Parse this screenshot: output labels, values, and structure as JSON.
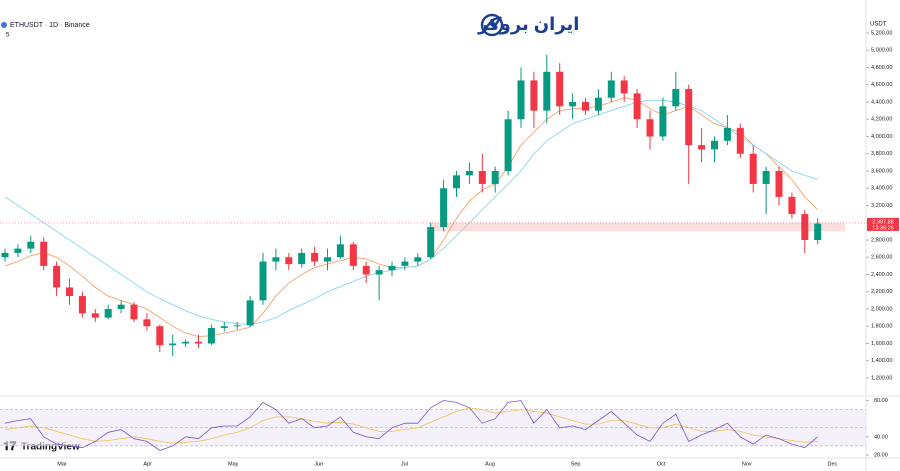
{
  "chart_data": {
    "type": "candlestick",
    "title": "ETHUSDT · 1D · Binance",
    "indicator_count": "5",
    "brand": "ایران بروکر",
    "watermark": "TradingView",
    "currency": "USDT",
    "up_color": "#089981",
    "down_color": "#f23645",
    "ylim": [
      1000,
      5400
    ],
    "yticks": [
      {
        "value": 1200,
        "label": "1,200.00"
      },
      {
        "value": 1400,
        "label": "1,400.00"
      },
      {
        "value": 1600,
        "label": "1,600.00"
      },
      {
        "value": 1800,
        "label": "1,800.00"
      },
      {
        "value": 2000,
        "label": "2,000.00"
      },
      {
        "value": 2200,
        "label": "2,200.00"
      },
      {
        "value": 2400,
        "label": "2,400.00"
      },
      {
        "value": 2600,
        "label": "2,600.00"
      },
      {
        "value": 2800,
        "label": "2,800.00"
      },
      {
        "value": 3000,
        "label": "3,000.00"
      },
      {
        "value": 3200,
        "label": "3,200.00"
      },
      {
        "value": 3400,
        "label": "3,400.00"
      },
      {
        "value": 3600,
        "label": "3,600.00"
      },
      {
        "value": 3800,
        "label": "3,800.00"
      },
      {
        "value": 4000,
        "label": "4,000.00"
      },
      {
        "value": 4200,
        "label": "4,200.00"
      },
      {
        "value": 4400,
        "label": "4,400.00"
      },
      {
        "value": 4600,
        "label": "4,600.00"
      },
      {
        "value": 4800,
        "label": "4,800.00"
      },
      {
        "value": 5000,
        "label": "5,000.00"
      },
      {
        "value": 5200,
        "label": "5,200.00"
      }
    ],
    "x_labels": [
      "Mar",
      "Apr",
      "May",
      "Jun",
      "Jul",
      "Aug",
      "Sep",
      "Oct",
      "Nov",
      "Dec"
    ],
    "candles": [
      [
        2600,
        2700,
        2550,
        2650
      ],
      [
        2650,
        2750,
        2600,
        2700
      ],
      [
        2700,
        2850,
        2650,
        2780
      ],
      [
        2780,
        2830,
        2450,
        2500
      ],
      [
        2500,
        2550,
        2150,
        2250
      ],
      [
        2250,
        2350,
        2050,
        2150
      ],
      [
        2150,
        2200,
        1900,
        1950
      ],
      [
        1950,
        2000,
        1850,
        1900
      ],
      [
        1900,
        2050,
        1880,
        2000
      ],
      [
        2000,
        2100,
        1950,
        2050
      ],
      [
        2050,
        2080,
        1850,
        1880
      ],
      [
        1880,
        1950,
        1750,
        1800
      ],
      [
        1800,
        1820,
        1500,
        1580
      ],
      [
        1580,
        1700,
        1450,
        1600
      ],
      [
        1600,
        1650,
        1560,
        1620
      ],
      [
        1620,
        1700,
        1550,
        1600
      ],
      [
        1600,
        1820,
        1580,
        1780
      ],
      [
        1780,
        1850,
        1740,
        1800
      ],
      [
        1800,
        1850,
        1760,
        1810
      ],
      [
        1810,
        2150,
        1790,
        2100
      ],
      [
        2100,
        2650,
        2050,
        2550
      ],
      [
        2550,
        2700,
        2450,
        2600
      ],
      [
        2600,
        2650,
        2450,
        2520
      ],
      [
        2520,
        2700,
        2480,
        2650
      ],
      [
        2650,
        2720,
        2500,
        2550
      ],
      [
        2550,
        2700,
        2450,
        2600
      ],
      [
        2600,
        2850,
        2580,
        2750
      ],
      [
        2750,
        2780,
        2450,
        2500
      ],
      [
        2500,
        2550,
        2300,
        2400
      ],
      [
        2400,
        2500,
        2100,
        2450
      ],
      [
        2450,
        2550,
        2380,
        2500
      ],
      [
        2500,
        2600,
        2450,
        2550
      ],
      [
        2550,
        2650,
        2500,
        2600
      ],
      [
        2600,
        3000,
        2580,
        2950
      ],
      [
        2950,
        3500,
        2900,
        3400
      ],
      [
        3400,
        3600,
        3300,
        3550
      ],
      [
        3550,
        3700,
        3450,
        3600
      ],
      [
        3600,
        3800,
        3350,
        3450
      ],
      [
        3450,
        3650,
        3350,
        3600
      ],
      [
        3600,
        4300,
        3550,
        4200
      ],
      [
        4200,
        4800,
        4100,
        4650
      ],
      [
        4650,
        4750,
        4100,
        4300
      ],
      [
        4300,
        4950,
        4150,
        4750
      ],
      [
        4750,
        4850,
        4250,
        4350
      ],
      [
        4350,
        4500,
        4200,
        4400
      ],
      [
        4400,
        4450,
        4250,
        4300
      ],
      [
        4300,
        4550,
        4250,
        4450
      ],
      [
        4450,
        4750,
        4400,
        4650
      ],
      [
        4650,
        4700,
        4400,
        4500
      ],
      [
        4500,
        4550,
        4100,
        4200
      ],
      [
        4200,
        4300,
        3850,
        4000
      ],
      [
        4000,
        4450,
        3950,
        4350
      ],
      [
        4350,
        4750,
        4300,
        4550
      ],
      [
        4550,
        4600,
        3450,
        3900
      ],
      [
        3900,
        4100,
        3700,
        3850
      ],
      [
        3850,
        4000,
        3700,
        3950
      ],
      [
        3950,
        4250,
        3900,
        4100
      ],
      [
        4100,
        4150,
        3750,
        3800
      ],
      [
        3800,
        3900,
        3350,
        3450
      ],
      [
        3450,
        3650,
        3100,
        3600
      ],
      [
        3600,
        3650,
        3200,
        3300
      ],
      [
        3300,
        3350,
        3050,
        3100
      ],
      [
        3100,
        3150,
        2650,
        2800
      ],
      [
        2800,
        3050,
        2750,
        2990
      ]
    ],
    "series": [
      {
        "color": "#f5a26b",
        "values": [
          2500,
          2550,
          2620,
          2650,
          2600,
          2500,
          2380,
          2250,
          2150,
          2100,
          2050,
          2000,
          1900,
          1800,
          1720,
          1680,
          1690,
          1720,
          1750,
          1790,
          1950,
          2150,
          2300,
          2400,
          2480,
          2520,
          2560,
          2600,
          2580,
          2520,
          2480,
          2480,
          2500,
          2580,
          2800,
          3050,
          3250,
          3380,
          3450,
          3650,
          3900,
          4050,
          4200,
          4300,
          4320,
          4330,
          4350,
          4400,
          4450,
          4420,
          4320,
          4250,
          4300,
          4350,
          4250,
          4150,
          4100,
          4050,
          3900,
          3800,
          3650,
          3500,
          3300,
          3150
        ]
      },
      {
        "color": "#86d9e8",
        "values": [
          3300,
          3200,
          3100,
          3000,
          2900,
          2800,
          2700,
          2600,
          2500,
          2400,
          2300,
          2200,
          2120,
          2050,
          1980,
          1920,
          1880,
          1850,
          1830,
          1820,
          1850,
          1900,
          1980,
          2050,
          2120,
          2200,
          2260,
          2320,
          2380,
          2420,
          2450,
          2480,
          2500,
          2580,
          2700,
          2850,
          3000,
          3150,
          3300,
          3450,
          3600,
          3800,
          3950,
          4050,
          4150,
          4200,
          4250,
          4300,
          4350,
          4400,
          4420,
          4420,
          4400,
          4350,
          4300,
          4200,
          4100,
          4000,
          3900,
          3800,
          3700,
          3600,
          3550,
          3500
        ]
      }
    ],
    "zone": {
      "range": [
        2900,
        3000
      ],
      "color": "#fcdede"
    },
    "last_price": {
      "value": 2997.88,
      "label": "2,997.88"
    },
    "countdown": "13:36:26",
    "rsi": {
      "color": "#7e57c2",
      "ma_color": "#f2c14e",
      "ylim": [
        20,
        85
      ],
      "yticks": [
        {
          "value": 80,
          "label": "80.00"
        },
        {
          "value": 40,
          "label": "40.00"
        },
        {
          "value": 20,
          "label": "20.00"
        }
      ],
      "bands": [
        70,
        50,
        30
      ],
      "values": [
        55,
        58,
        60,
        40,
        32,
        30,
        28,
        35,
        45,
        48,
        38,
        35,
        25,
        30,
        40,
        38,
        50,
        52,
        52,
        62,
        78,
        70,
        55,
        60,
        50,
        52,
        62,
        45,
        40,
        38,
        50,
        55,
        55,
        72,
        80,
        78,
        72,
        55,
        60,
        78,
        80,
        55,
        70,
        50,
        52,
        48,
        58,
        68,
        55,
        42,
        35,
        55,
        65,
        35,
        42,
        48,
        55,
        40,
        32,
        42,
        38,
        32,
        28,
        40
      ],
      "ma": [
        48,
        50,
        52,
        50,
        46,
        42,
        38,
        35,
        36,
        38,
        40,
        38,
        35,
        33,
        34,
        35,
        38,
        42,
        45,
        50,
        58,
        62,
        62,
        60,
        57,
        55,
        56,
        54,
        50,
        46,
        46,
        48,
        50,
        56,
        62,
        68,
        72,
        70,
        66,
        68,
        70,
        68,
        66,
        62,
        58,
        54,
        54,
        58,
        58,
        54,
        50,
        50,
        54,
        50,
        46,
        46,
        48,
        46,
        42,
        40,
        38,
        36,
        34,
        35
      ]
    }
  }
}
